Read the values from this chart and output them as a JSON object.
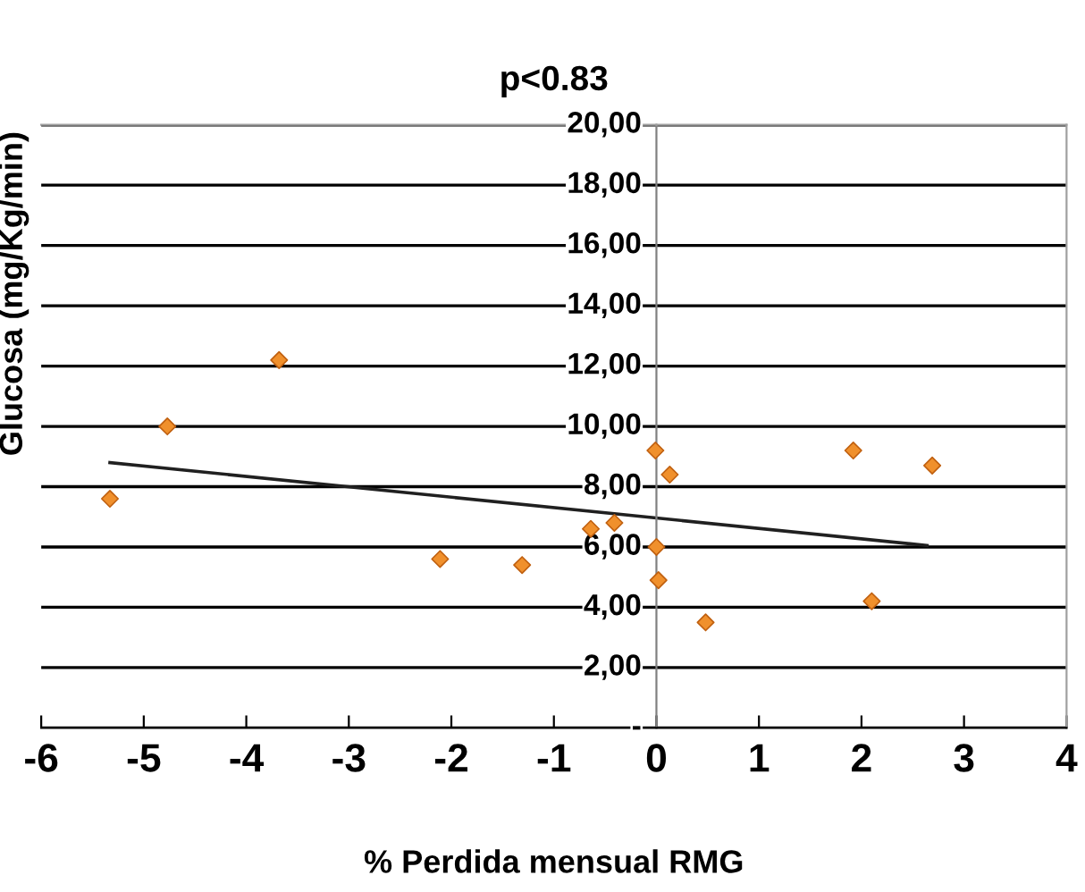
{
  "chart_data": {
    "type": "scatter",
    "title": "p<0.83",
    "xlabel": "% Perdida mensual RMG",
    "ylabel": "Glucosa (mg/Kg/min)",
    "series": [
      {
        "type": "scatter",
        "color": "#f0902c",
        "marker": "diamond",
        "x": [
          -5.33,
          -4.77,
          -3.68,
          -2.11,
          -1.31,
          -0.64,
          -0.41,
          -0.01,
          0.13,
          0.0,
          0.02,
          0.48,
          1.92,
          2.1,
          2.69
        ],
        "values": [
          7.6,
          10.0,
          12.2,
          5.6,
          5.4,
          6.6,
          6.8,
          9.2,
          8.4,
          6.0,
          4.9,
          3.5,
          9.2,
          4.2,
          8.7
        ]
      },
      {
        "type": "line",
        "color": "#202020",
        "marker": "none",
        "line_style": "solid",
        "x": [
          -5.33,
          2.64
        ],
        "values": [
          8.8,
          6.05
        ]
      }
    ],
    "xlim": [
      -6,
      4
    ],
    "xticks": [
      -6,
      -5,
      -4,
      -3,
      -2,
      -1,
      0,
      1,
      2,
      3,
      4
    ],
    "ylim": [
      0,
      20
    ],
    "yticks": [
      {
        "value": 0,
        "label": "-"
      },
      {
        "value": 2,
        "label": "2,00"
      },
      {
        "value": 4,
        "label": "4,00"
      },
      {
        "value": 6,
        "label": "6,00"
      },
      {
        "value": 8,
        "label": "8,00"
      },
      {
        "value": 10,
        "label": "10,00"
      },
      {
        "value": 12,
        "label": "12,00"
      },
      {
        "value": 14,
        "label": "14,00"
      },
      {
        "value": 16,
        "label": "16,00"
      },
      {
        "value": 18,
        "label": "18,00"
      },
      {
        "value": 20,
        "label": "20,00"
      }
    ],
    "grid": "y",
    "legend": false
  }
}
